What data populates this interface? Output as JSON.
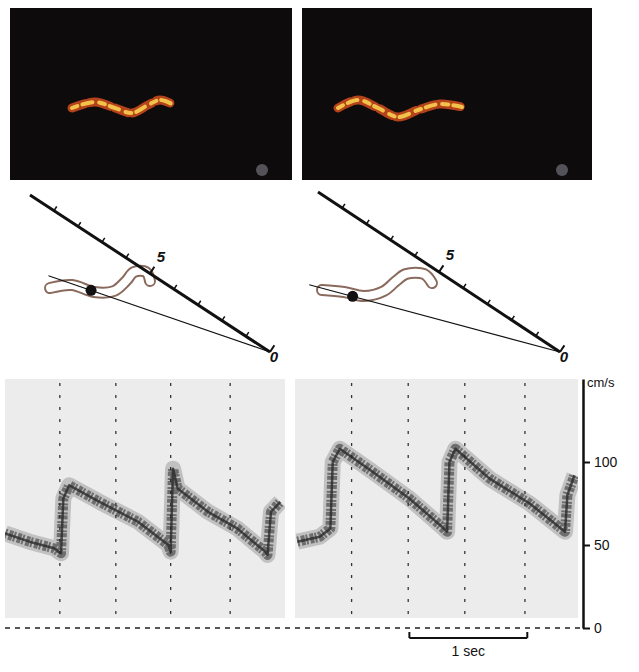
{
  "chart_data": [
    {
      "type": "line",
      "x": [
        0,
        0.21,
        0.42,
        0.48,
        0.5,
        0.55,
        0.81,
        1.14,
        1.4,
        1.42,
        1.44,
        1.48,
        1.74,
        1.99,
        2.23,
        2.25,
        2.28,
        2.36
      ],
      "series": [
        {
          "color": "#2a2a2a",
          "values": [
            57,
            52,
            48,
            45,
            78,
            86,
            76,
            64,
            50,
            46,
            96,
            84,
            70,
            60,
            46,
            44,
            70,
            76
          ]
        }
      ],
      "xlim": [
        0,
        2.4
      ],
      "ylim": [
        0,
        150
      ],
      "xticks": [
        0.47,
        0.95,
        1.42,
        1.93
      ],
      "grid": true,
      "tick_labels": false,
      "depth_scale": {
        "lim": [
          0,
          10
        ],
        "ticks": [
          0,
          5
        ],
        "minor_ticks": [
          1,
          2,
          3,
          4,
          6,
          7,
          8,
          9
        ],
        "sample_depth": 6.6
      }
    },
    {
      "type": "line",
      "x": [
        0.02,
        0.21,
        0.3,
        0.32,
        0.38,
        0.64,
        0.97,
        1.23,
        1.29,
        1.31,
        1.36,
        1.65,
        1.99,
        2.29,
        2.31,
        2.37
      ],
      "series": [
        {
          "color": "#2a2a2a",
          "values": [
            52,
            55,
            60,
            100,
            108,
            95,
            78,
            62,
            58,
            100,
            108,
            90,
            75,
            58,
            80,
            92
          ]
        }
      ],
      "xlim": [
        0,
        2.4
      ],
      "ylim": [
        0,
        150
      ],
      "yticks": [
        0,
        50,
        100
      ],
      "y_label": "cm/s",
      "xticks": [
        0.48,
        0.96,
        1.44,
        1.95
      ],
      "grid": true,
      "tick_labels": "y",
      "depth_scale": {
        "lim": [
          0,
          10
        ],
        "ticks": [
          0,
          5
        ],
        "minor_ticks": [
          1,
          2,
          3,
          4,
          6,
          7,
          8,
          9
        ],
        "sample_depth": 7.4
      },
      "scale_bar": {
        "label": "1 sec",
        "from": 0.97,
        "to": 1.97
      }
    }
  ]
}
